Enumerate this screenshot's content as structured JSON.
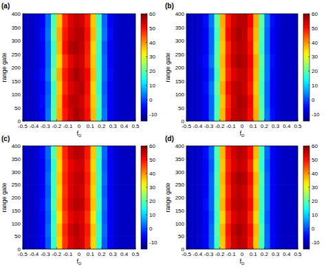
{
  "chart_data": [
    {
      "type": "heatmap",
      "title": "(a)",
      "xlabel": "fD",
      "ylabel": "range gate",
      "xlim": [
        -0.5,
        0.5
      ],
      "ylim": [
        0,
        400
      ],
      "xticks": [
        -0.5,
        -0.4,
        -0.3,
        -0.2,
        -0.1,
        0,
        0.1,
        0.2,
        0.3,
        0.4,
        0.5
      ],
      "yticks": [
        0,
        50,
        100,
        150,
        200,
        250,
        300,
        350,
        400
      ],
      "x_bins": [
        -0.5,
        -0.45,
        -0.4,
        -0.35,
        -0.3,
        -0.25,
        -0.2,
        -0.15,
        -0.1,
        -0.05,
        0,
        0.05,
        0.1,
        0.15,
        0.2,
        0.25,
        0.3,
        0.35,
        0.4,
        0.45,
        0.5
      ],
      "y_bins": [
        0,
        50,
        100,
        150,
        200,
        250,
        300,
        350,
        400
      ],
      "cells": [
        [
          -10,
          -10,
          -9,
          -6,
          3,
          20,
          38,
          49,
          54,
          57,
          55,
          50,
          37,
          18,
          3,
          -6,
          -9,
          -10,
          -10,
          -10
        ],
        [
          -10,
          -10,
          -9,
          -5,
          2,
          19,
          37,
          50,
          55,
          56,
          54,
          49,
          36,
          19,
          2,
          -6,
          -9,
          -10,
          -10,
          -10
        ],
        [
          -10,
          -10,
          -9,
          -6,
          1,
          18,
          36,
          48,
          53,
          55,
          56,
          50,
          35,
          17,
          1,
          -6,
          -9,
          -10,
          -10,
          -10
        ],
        [
          -10,
          -10,
          -8,
          -5,
          3,
          21,
          38,
          49,
          54,
          57,
          55,
          51,
          37,
          18,
          2,
          -5,
          -9,
          -10,
          -10,
          -10
        ],
        [
          -10,
          -10,
          -9,
          -6,
          2,
          19,
          35,
          47,
          52,
          55,
          54,
          48,
          36,
          17,
          2,
          -6,
          -9,
          -10,
          -10,
          -10
        ],
        [
          -10,
          -10,
          -9,
          -6,
          2,
          18,
          37,
          50,
          56,
          57,
          55,
          49,
          35,
          18,
          1,
          -6,
          -9,
          -10,
          -10,
          -10
        ],
        [
          -10,
          -10,
          -9,
          -5,
          3,
          20,
          38,
          49,
          54,
          56,
          56,
          50,
          37,
          19,
          3,
          -5,
          -9,
          -10,
          -10,
          -10
        ],
        [
          -10,
          -10,
          -9,
          -6,
          2,
          19,
          36,
          48,
          53,
          55,
          54,
          49,
          36,
          18,
          2,
          -6,
          -9,
          -10,
          -10,
          -10
        ]
      ],
      "clim": [
        -15,
        60
      ],
      "cticks": [
        -10,
        0,
        10,
        20,
        30,
        40,
        50,
        60
      ]
    },
    {
      "type": "heatmap",
      "title": "(b)",
      "xlabel": "fD",
      "ylabel": "range gate",
      "xlim": [
        -0.5,
        0.5
      ],
      "ylim": [
        0,
        400
      ],
      "xticks": [
        -0.5,
        -0.4,
        -0.3,
        -0.2,
        -0.1,
        0,
        0.1,
        0.2,
        0.3,
        0.4,
        0.5
      ],
      "yticks": [
        0,
        50,
        100,
        150,
        200,
        250,
        300,
        350,
        400
      ],
      "x_bins": [
        -0.5,
        -0.45,
        -0.4,
        -0.35,
        -0.3,
        -0.25,
        -0.2,
        -0.15,
        -0.1,
        -0.05,
        0,
        0.05,
        0.1,
        0.15,
        0.2,
        0.25,
        0.3,
        0.35,
        0.4,
        0.45,
        0.5
      ],
      "y_bins": [
        0,
        50,
        100,
        150,
        200,
        250,
        300,
        350,
        400
      ],
      "cells": [
        [
          -10,
          -10,
          -9,
          -6,
          2,
          19,
          37,
          49,
          55,
          56,
          55,
          50,
          38,
          20,
          3,
          -5,
          -9,
          -10,
          -10,
          -10
        ],
        [
          -10,
          -10,
          -9,
          -6,
          2,
          18,
          36,
          48,
          54,
          57,
          56,
          51,
          37,
          19,
          2,
          -6,
          -9,
          -10,
          -10,
          -10
        ],
        [
          -10,
          -10,
          -9,
          -5,
          3,
          20,
          38,
          50,
          55,
          56,
          54,
          49,
          36,
          18,
          2,
          -6,
          -9,
          -10,
          -10,
          -10
        ],
        [
          -10,
          -10,
          -9,
          -6,
          1,
          18,
          36,
          48,
          53,
          55,
          55,
          50,
          37,
          19,
          3,
          -6,
          -9,
          -10,
          -10,
          -10
        ],
        [
          -10,
          -10,
          -8,
          -5,
          3,
          20,
          37,
          49,
          55,
          57,
          56,
          51,
          38,
          20,
          3,
          -5,
          -9,
          -10,
          -10,
          -10
        ],
        [
          -10,
          -10,
          -9,
          -6,
          2,
          19,
          36,
          48,
          54,
          56,
          55,
          50,
          36,
          18,
          2,
          -6,
          -9,
          -10,
          -10,
          -10
        ],
        [
          -10,
          -10,
          -9,
          -6,
          2,
          18,
          37,
          50,
          55,
          57,
          55,
          49,
          37,
          19,
          2,
          -6,
          -9,
          -10,
          -10,
          -10
        ],
        [
          -10,
          -10,
          -9,
          -5,
          3,
          20,
          38,
          49,
          54,
          56,
          56,
          51,
          38,
          20,
          3,
          -5,
          -9,
          -10,
          -10,
          -10
        ]
      ],
      "clim": [
        -15,
        60
      ],
      "cticks": [
        -10,
        0,
        10,
        20,
        30,
        40,
        50,
        60
      ]
    },
    {
      "type": "heatmap",
      "title": "(c)",
      "xlabel": "fD",
      "ylabel": "range gate",
      "xlim": [
        -0.5,
        0.5
      ],
      "ylim": [
        0,
        400
      ],
      "xticks": [
        -0.5,
        -0.4,
        -0.3,
        -0.2,
        -0.1,
        0,
        0.1,
        0.2,
        0.3,
        0.4,
        0.5
      ],
      "yticks": [
        0,
        50,
        100,
        150,
        200,
        250,
        300,
        350,
        400
      ],
      "x_bins": [
        -0.5,
        -0.45,
        -0.4,
        -0.35,
        -0.3,
        -0.25,
        -0.2,
        -0.15,
        -0.1,
        -0.05,
        0,
        0.05,
        0.1,
        0.15,
        0.2,
        0.25,
        0.3,
        0.35,
        0.4,
        0.45,
        0.5
      ],
      "y_bins": [
        0,
        50,
        100,
        150,
        200,
        250,
        300,
        350,
        400
      ],
      "cells": [
        [
          -10,
          -10,
          -9,
          -6,
          1,
          17,
          35,
          47,
          53,
          55,
          54,
          48,
          35,
          17,
          1,
          -6,
          -9,
          -10,
          -10,
          -10
        ],
        [
          -10,
          -10,
          -9,
          -6,
          2,
          18,
          36,
          48,
          54,
          56,
          54,
          49,
          36,
          18,
          2,
          -6,
          -9,
          -10,
          -10,
          -10
        ],
        [
          -10,
          -10,
          -9,
          -6,
          1,
          17,
          34,
          46,
          52,
          54,
          53,
          47,
          34,
          16,
          1,
          -6,
          -9,
          -10,
          -10,
          -10
        ],
        [
          -10,
          -10,
          -9,
          -5,
          2,
          19,
          36,
          48,
          54,
          56,
          55,
          49,
          36,
          18,
          2,
          -6,
          -9,
          -10,
          -10,
          -10
        ],
        [
          -10,
          -10,
          -9,
          -6,
          1,
          18,
          35,
          47,
          53,
          55,
          54,
          48,
          35,
          17,
          1,
          -6,
          -9,
          -10,
          -10,
          -10
        ],
        [
          -10,
          -10,
          -9,
          -6,
          2,
          18,
          36,
          48,
          53,
          55,
          55,
          49,
          36,
          18,
          2,
          -6,
          -9,
          -10,
          -10,
          -10
        ],
        [
          -10,
          -10,
          -9,
          -6,
          1,
          17,
          35,
          47,
          52,
          54,
          54,
          48,
          35,
          17,
          1,
          -6,
          -9,
          -10,
          -10,
          -10
        ],
        [
          -10,
          -10,
          -9,
          -5,
          2,
          19,
          36,
          48,
          54,
          56,
          55,
          49,
          36,
          18,
          2,
          -6,
          -9,
          -10,
          -10,
          -10
        ]
      ],
      "clim": [
        -15,
        60
      ],
      "cticks": [
        -10,
        0,
        10,
        20,
        30,
        40,
        50,
        60
      ]
    },
    {
      "type": "heatmap",
      "title": "(d)",
      "xlabel": "fD",
      "ylabel": "range gate",
      "xlim": [
        -0.5,
        0.5
      ],
      "ylim": [
        0,
        400
      ],
      "xticks": [
        -0.5,
        -0.4,
        -0.3,
        -0.2,
        -0.1,
        0,
        0.1,
        0.2,
        0.3,
        0.4,
        0.5
      ],
      "yticks": [
        0,
        50,
        100,
        150,
        200,
        250,
        300,
        350,
        400
      ],
      "x_bins": [
        -0.5,
        -0.45,
        -0.4,
        -0.35,
        -0.3,
        -0.25,
        -0.2,
        -0.15,
        -0.1,
        -0.05,
        0,
        0.05,
        0.1,
        0.15,
        0.2,
        0.25,
        0.3,
        0.35,
        0.4,
        0.45,
        0.5
      ],
      "y_bins": [
        0,
        50,
        100,
        150,
        200,
        250,
        300,
        350,
        400
      ],
      "cells": [
        [
          -10,
          -10,
          -9,
          -6,
          2,
          18,
          36,
          48,
          54,
          56,
          55,
          49,
          36,
          18,
          2,
          -6,
          -9,
          -10,
          -10,
          -10
        ],
        [
          -10,
          -10,
          -9,
          -6,
          2,
          19,
          37,
          49,
          55,
          57,
          55,
          50,
          37,
          19,
          2,
          -6,
          -9,
          -10,
          -10,
          -10
        ],
        [
          -10,
          -10,
          -9,
          -6,
          1,
          18,
          35,
          47,
          53,
          55,
          54,
          48,
          35,
          17,
          1,
          -6,
          -9,
          -10,
          -10,
          -10
        ],
        [
          -10,
          -10,
          -9,
          -5,
          2,
          19,
          37,
          49,
          55,
          56,
          55,
          50,
          37,
          18,
          2,
          -6,
          -9,
          -10,
          -10,
          -10
        ],
        [
          -10,
          -10,
          -9,
          -6,
          2,
          18,
          36,
          48,
          54,
          56,
          54,
          49,
          36,
          18,
          2,
          -6,
          -9,
          -10,
          -10,
          -10
        ],
        [
          -10,
          -10,
          -9,
          -6,
          2,
          19,
          37,
          49,
          55,
          57,
          56,
          50,
          37,
          19,
          2,
          -6,
          -9,
          -10,
          -10,
          -10
        ],
        [
          -10,
          -10,
          -9,
          -6,
          1,
          18,
          36,
          48,
          53,
          55,
          54,
          48,
          35,
          17,
          1,
          -6,
          -9,
          -10,
          -10,
          -10
        ],
        [
          -10,
          -10,
          -9,
          -5,
          2,
          19,
          37,
          49,
          54,
          56,
          55,
          50,
          37,
          18,
          2,
          -6,
          -9,
          -10,
          -10,
          -10
        ]
      ],
      "clim": [
        -15,
        60
      ],
      "cticks": [
        -10,
        0,
        10,
        20,
        30,
        40,
        50,
        60
      ]
    }
  ]
}
